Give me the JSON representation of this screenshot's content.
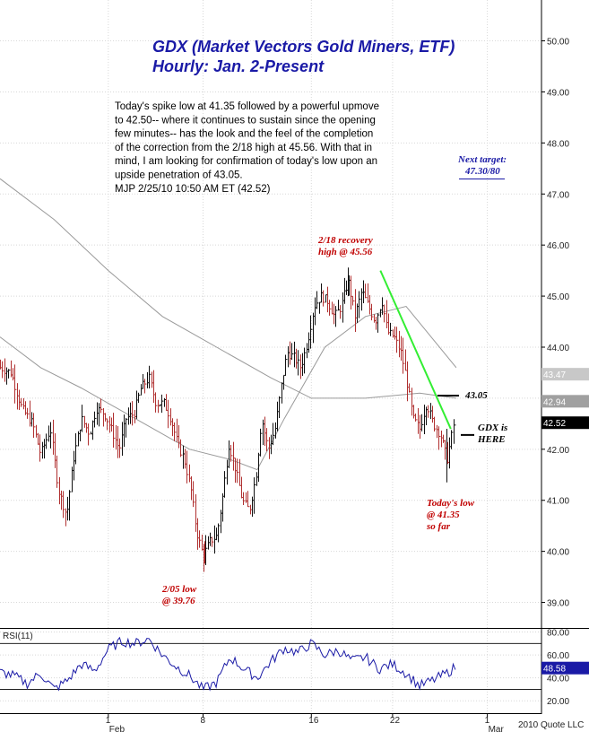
{
  "chart_data": {
    "type": "bar",
    "title": "GDX (Market Vectors Gold Miners, ETF)",
    "subtitle": "Hourly: Jan. 2-Present",
    "note_lines": [
      "Today's spike low at 41.35 followed by a powerful upmove",
      "to 42.50-- where it continues to sustain since the opening",
      "few minutes-- has the look and the feel of the completion",
      "of the correction from the 2/18 high at 45.56. With that in",
      "mind, I am looking for confirmation of today's low upon an",
      "upside penetration of 43.05.",
      "MJP  2/25/10  10:50 AM ET  (42.52)"
    ],
    "y_ticks": [
      "50.00",
      "49.00",
      "48.00",
      "47.00",
      "46.00",
      "45.00",
      "44.00",
      "43.00",
      "42.00",
      "41.00",
      "40.00",
      "39.00"
    ],
    "ylim": [
      38.5,
      50.8
    ],
    "x_ticks": [
      {
        "label": "1",
        "sub": "Feb",
        "day": 31
      },
      {
        "label": "8",
        "sub": "",
        "day": 38
      },
      {
        "label": "16",
        "sub": "",
        "day": 46
      },
      {
        "label": "22",
        "sub": "",
        "day": 52
      },
      {
        "label": "1",
        "sub": "Mar",
        "day": 59
      }
    ],
    "xlim_days": [
      23,
      63
    ],
    "anchor_points": [
      [
        23.0,
        43.6
      ],
      [
        23.8,
        43.5
      ],
      [
        24.6,
        42.8
      ],
      [
        25.4,
        42.5
      ],
      [
        26.0,
        41.9
      ],
      [
        26.7,
        42.4
      ],
      [
        27.3,
        41.2
      ],
      [
        27.9,
        40.7
      ],
      [
        28.4,
        41.8
      ],
      [
        29.0,
        42.6
      ],
      [
        29.6,
        42.3
      ],
      [
        30.1,
        42.8
      ],
      [
        30.7,
        42.7
      ],
      [
        31.2,
        42.4
      ],
      [
        31.8,
        42.0
      ],
      [
        32.3,
        42.6
      ],
      [
        32.9,
        42.7
      ],
      [
        33.4,
        43.2
      ],
      [
        34.0,
        43.4
      ],
      [
        34.5,
        42.9
      ],
      [
        35.1,
        42.9
      ],
      [
        35.6,
        42.6
      ],
      [
        36.1,
        42.1
      ],
      [
        36.6,
        41.8
      ],
      [
        37.1,
        41.2
      ],
      [
        37.5,
        40.4
      ],
      [
        38.0,
        39.9
      ],
      [
        38.5,
        40.2
      ],
      [
        39.0,
        40.3
      ],
      [
        39.4,
        41.0
      ],
      [
        39.9,
        42.1
      ],
      [
        40.4,
        41.6
      ],
      [
        40.9,
        41.0
      ],
      [
        41.4,
        40.8
      ],
      [
        41.9,
        41.5
      ],
      [
        42.3,
        42.6
      ],
      [
        42.8,
        42.0
      ],
      [
        43.3,
        42.4
      ],
      [
        43.8,
        43.3
      ],
      [
        44.2,
        43.9
      ],
      [
        44.7,
        43.8
      ],
      [
        45.2,
        43.6
      ],
      [
        45.7,
        44.1
      ],
      [
        46.2,
        44.8
      ],
      [
        46.7,
        45.0
      ],
      [
        47.2,
        44.9
      ],
      [
        47.7,
        44.6
      ],
      [
        48.2,
        44.8
      ],
      [
        48.7,
        45.3
      ],
      [
        49.2,
        44.6
      ],
      [
        49.7,
        45.1
      ],
      [
        50.2,
        44.8
      ],
      [
        50.7,
        44.5
      ],
      [
        51.2,
        44.9
      ],
      [
        51.6,
        44.3
      ],
      [
        52.1,
        44.2
      ],
      [
        52.6,
        43.9
      ],
      [
        53.0,
        43.4
      ],
      [
        53.5,
        42.6
      ],
      [
        54.0,
        42.4
      ],
      [
        54.5,
        42.9
      ],
      [
        55.0,
        42.5
      ],
      [
        55.5,
        42.3
      ],
      [
        56.0,
        41.8
      ],
      [
        56.5,
        42.5
      ]
    ],
    "series": [
      {
        "name": "",
        "color": "#9a9a9a"
      },
      {
        "name": "",
        "color": "#9a9a9a"
      }
    ],
    "ma_slow": [
      [
        23.0,
        47.3
      ],
      [
        27,
        46.5
      ],
      [
        31,
        45.5
      ],
      [
        35,
        44.6
      ],
      [
        39,
        44.0
      ],
      [
        43,
        43.4
      ],
      [
        46,
        43.0
      ],
      [
        50,
        43.0
      ],
      [
        54,
        43.1
      ],
      [
        56.7,
        43.0
      ]
    ],
    "ma_fast": [
      [
        23.0,
        44.2
      ],
      [
        26,
        43.6
      ],
      [
        29,
        43.2
      ],
      [
        33,
        42.6
      ],
      [
        37,
        42.0
      ],
      [
        40,
        41.8
      ],
      [
        42,
        41.6
      ],
      [
        44,
        42.6
      ],
      [
        47,
        44.0
      ],
      [
        50,
        44.6
      ],
      [
        53,
        44.8
      ],
      [
        56.7,
        43.6
      ]
    ],
    "trendline": {
      "from": [
        51.1,
        45.5
      ],
      "to": [
        56.3,
        42.4
      ],
      "color": "#33ee33"
    },
    "price_tags": [
      {
        "value": 43.47,
        "label": "43.47",
        "color": "#c8c8c8"
      },
      {
        "value": 42.94,
        "label": "42.94",
        "color": "#a0a0a0"
      },
      {
        "value": 42.52,
        "label": "42.52",
        "color": "#000000"
      }
    ],
    "annotations": {
      "next_target": [
        "Next target:",
        "47.30/80"
      ],
      "recovery_high": [
        "2/18 recovery",
        "high @ 45.56"
      ],
      "level_43": "43.05",
      "gdx_here": [
        "GDX is",
        "HERE"
      ],
      "todays_low": [
        "Today's low",
        "@ 41.35",
        "so far"
      ],
      "feb5_low": [
        "2/05 low",
        "@ 39.76"
      ]
    },
    "rsi": {
      "label": "RSI(11)",
      "y_ticks": [
        "80.00",
        "60.00",
        "40.00",
        "20.00"
      ],
      "ylim": [
        10,
        82
      ],
      "current": "48.58",
      "anchor_points": [
        [
          23.0,
          45
        ],
        [
          24,
          42
        ],
        [
          25,
          35
        ],
        [
          26,
          44
        ],
        [
          27,
          30
        ],
        [
          28,
          38
        ],
        [
          29,
          52
        ],
        [
          30,
          46
        ],
        [
          31,
          65
        ],
        [
          32,
          72
        ],
        [
          33,
          70
        ],
        [
          34,
          74
        ],
        [
          35,
          60
        ],
        [
          36,
          50
        ],
        [
          37,
          42
        ],
        [
          38,
          30
        ],
        [
          39,
          36
        ],
        [
          40,
          58
        ],
        [
          41,
          48
        ],
        [
          42,
          40
        ],
        [
          43,
          54
        ],
        [
          44,
          66
        ],
        [
          45,
          62
        ],
        [
          46,
          70
        ],
        [
          47,
          60
        ],
        [
          48,
          64
        ],
        [
          49,
          55
        ],
        [
          50,
          58
        ],
        [
          51,
          48
        ],
        [
          52,
          52
        ],
        [
          53,
          44
        ],
        [
          54,
          33
        ],
        [
          55,
          38
        ],
        [
          56,
          44
        ],
        [
          56.7,
          50
        ]
      ]
    },
    "copyright": "2010 Quote LLC"
  }
}
